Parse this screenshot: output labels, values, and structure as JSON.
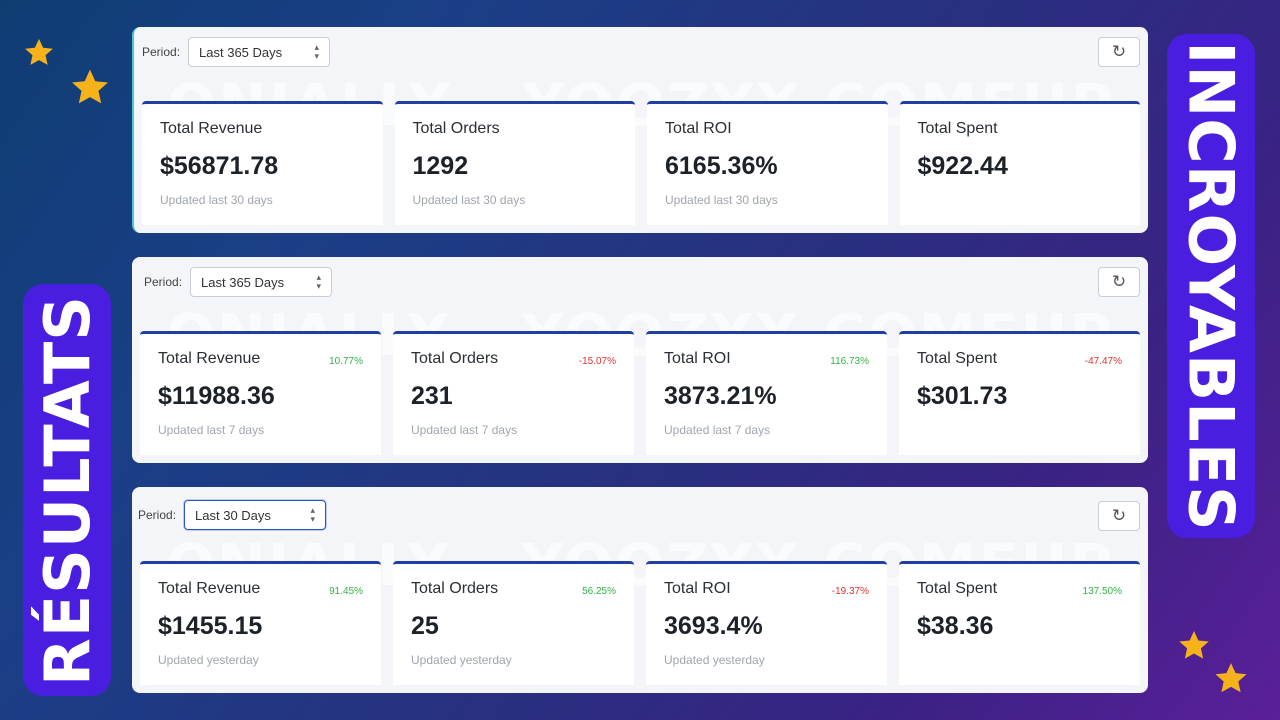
{
  "banners": {
    "left": "RÉSULTATS",
    "right": "INCROYABLES"
  },
  "watermark": "ONIALLY - YOOZYX COMEUP",
  "colors": {
    "accent": "#1f3fa6",
    "banner": "#4a1ee0",
    "up": "#2fb344",
    "down": "#e03131",
    "star": "#f6b21b"
  },
  "icons": {
    "refresh": "refresh-icon",
    "select_caret": "chevron-updown-icon",
    "star": "star-icon"
  },
  "panels": [
    {
      "period_label": "Period:",
      "period_value": "Last 365 Days",
      "cards": [
        {
          "title": "Total Revenue",
          "change": "",
          "value": "$56871.78",
          "sub": "Updated last 30 days"
        },
        {
          "title": "Total Orders",
          "change": "",
          "value": "1292",
          "sub": "Updated last 30 days"
        },
        {
          "title": "Total ROI",
          "change": "",
          "value": "6165.36%",
          "sub": "Updated last 30 days"
        },
        {
          "title": "Total Spent",
          "change": "",
          "value": "$922.44",
          "sub": ""
        }
      ]
    },
    {
      "period_label": "Period:",
      "period_value": "Last 365 Days",
      "cards": [
        {
          "title": "Total Revenue",
          "change": "10.77%",
          "value": "$11988.36",
          "sub": "Updated last 7 days"
        },
        {
          "title": "Total Orders",
          "change": "-15.07%",
          "value": "231",
          "sub": "Updated last 7 days"
        },
        {
          "title": "Total ROI",
          "change": "116.73%",
          "value": "3873.21%",
          "sub": "Updated last 7 days"
        },
        {
          "title": "Total Spent",
          "change": "-47.47%",
          "value": "$301.73",
          "sub": ""
        }
      ]
    },
    {
      "period_label": "Period:",
      "period_value": "Last 30 Days",
      "cards": [
        {
          "title": "Total Revenue",
          "change": "91.45%",
          "value": "$1455.15",
          "sub": "Updated yesterday"
        },
        {
          "title": "Total Orders",
          "change": "56.25%",
          "value": "25",
          "sub": "Updated yesterday"
        },
        {
          "title": "Total ROI",
          "change": "-19.37%",
          "value": "3693.4%",
          "sub": "Updated yesterday"
        },
        {
          "title": "Total Spent",
          "change": "137.50%",
          "value": "$38.36",
          "sub": ""
        }
      ]
    }
  ]
}
